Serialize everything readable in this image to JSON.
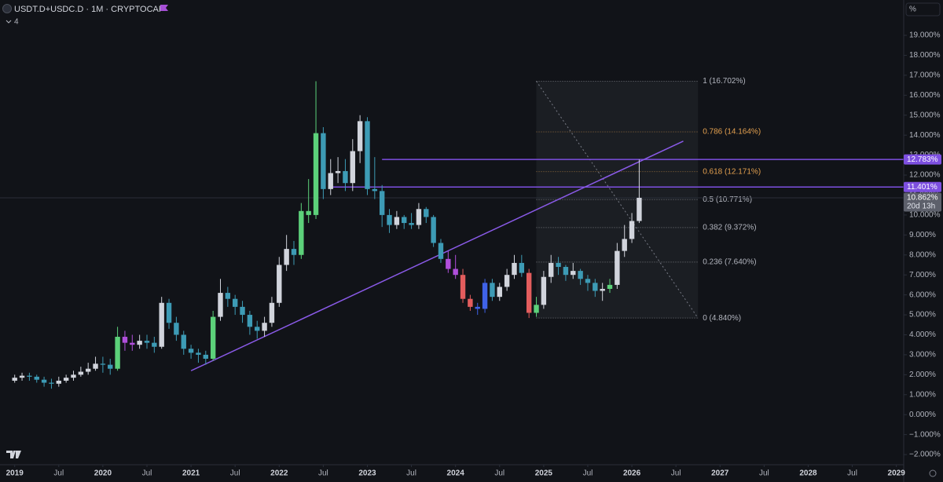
{
  "chart_data": {
    "type": "candlestick",
    "title": "USDT.D+USDC.D · 1M · CRYPTOCAP",
    "indicators": 4,
    "unit_label": "%",
    "x": [
      "2019-01",
      "2019-02",
      "2019-03",
      "2019-04",
      "2019-05",
      "2019-06",
      "2019-07",
      "2019-08",
      "2019-09",
      "2019-10",
      "2019-11",
      "2019-12",
      "2020-01",
      "2020-02",
      "2020-03",
      "2020-04",
      "2020-05",
      "2020-06",
      "2020-07",
      "2020-08",
      "2020-09",
      "2020-10",
      "2020-11",
      "2020-12",
      "2021-01",
      "2021-02",
      "2021-03",
      "2021-04",
      "2021-05",
      "2021-06",
      "2021-07",
      "2021-08",
      "2021-09",
      "2021-10",
      "2021-11",
      "2021-12",
      "2022-01",
      "2022-02",
      "2022-03",
      "2022-04",
      "2022-05",
      "2022-06",
      "2022-07",
      "2022-08",
      "2022-09",
      "2022-10",
      "2022-11",
      "2022-12",
      "2023-01",
      "2023-02",
      "2023-03",
      "2023-04",
      "2023-05",
      "2023-06",
      "2023-07",
      "2023-08",
      "2023-09",
      "2023-10",
      "2023-11",
      "2023-12",
      "2024-01",
      "2024-02",
      "2024-03",
      "2024-04",
      "2024-05",
      "2024-06",
      "2024-07",
      "2024-08",
      "2024-09",
      "2024-10",
      "2024-11",
      "2024-12",
      "2025-01",
      "2025-02",
      "2025-03",
      "2025-04",
      "2025-05",
      "2025-06",
      "2025-07",
      "2025-08",
      "2025-09",
      "2025-10",
      "2025-11",
      "2025-12",
      "2026-01",
      "2026-02"
    ],
    "open": [
      1.7,
      1.85,
      1.95,
      1.9,
      1.75,
      1.6,
      1.55,
      1.7,
      1.85,
      2.0,
      2.15,
      2.3,
      2.55,
      2.5,
      2.3,
      3.9,
      3.6,
      3.5,
      3.7,
      3.6,
      3.4,
      5.6,
      4.6,
      4.0,
      3.3,
      3.1,
      3.0,
      2.8,
      4.9,
      6.1,
      5.8,
      5.4,
      5.0,
      4.4,
      4.2,
      4.6,
      5.6,
      7.5,
      8.3,
      8.0,
      10.2,
      10.0,
      14.1,
      11.3,
      12.1,
      12.2,
      11.6,
      13.2,
      14.7,
      11.3,
      11.2,
      10.0,
      9.5,
      9.9,
      9.6,
      9.5,
      10.3,
      9.9,
      8.6,
      7.8,
      7.3,
      7.0,
      5.8,
      5.4,
      5.3,
      6.6,
      5.9,
      6.4,
      7.0,
      7.6,
      7.1,
      5.1,
      5.5,
      6.9,
      7.6,
      7.4,
      7.0,
      7.2,
      6.8,
      6.6,
      6.2,
      6.3,
      6.5,
      8.2,
      8.8,
      9.7
    ],
    "high": [
      2.0,
      2.1,
      2.1,
      2.0,
      1.9,
      1.8,
      1.9,
      2.0,
      2.2,
      2.4,
      2.6,
      2.9,
      2.9,
      2.8,
      4.4,
      4.2,
      4.0,
      4.0,
      4.0,
      3.9,
      5.9,
      5.8,
      4.9,
      4.2,
      3.5,
      3.3,
      3.2,
      5.2,
      6.8,
      6.4,
      6.0,
      5.7,
      5.2,
      4.7,
      4.9,
      5.9,
      7.9,
      9.0,
      8.7,
      10.6,
      11.8,
      16.702,
      14.4,
      12.8,
      12.9,
      12.8,
      13.8,
      15.0,
      14.9,
      12.9,
      11.5,
      10.3,
      10.2,
      10.0,
      10.1,
      10.6,
      10.4,
      10.0,
      8.8,
      8.2,
      8.0,
      7.3,
      6.0,
      5.6,
      6.8,
      6.8,
      6.6,
      7.3,
      8.0,
      8.0,
      7.3,
      5.9,
      7.2,
      8.0,
      7.9,
      7.5,
      7.6,
      7.3,
      7.0,
      6.8,
      6.6,
      6.8,
      8.6,
      9.5,
      10.1,
      12.783
    ],
    "low": [
      1.6,
      1.7,
      1.7,
      1.6,
      1.4,
      1.3,
      1.4,
      1.6,
      1.7,
      1.9,
      2.0,
      2.2,
      2.1,
      2.0,
      2.2,
      3.2,
      3.2,
      3.3,
      3.3,
      3.1,
      3.3,
      4.3,
      3.7,
      3.0,
      2.8,
      2.6,
      2.5,
      2.7,
      4.7,
      5.4,
      5.0,
      4.6,
      4.0,
      3.8,
      3.9,
      4.4,
      5.4,
      7.2,
      7.5,
      7.8,
      9.6,
      9.8,
      10.8,
      11.0,
      11.6,
      11.2,
      11.2,
      12.6,
      11.0,
      10.8,
      9.4,
      9.1,
      9.3,
      9.3,
      9.3,
      9.3,
      9.6,
      8.4,
      7.6,
      7.1,
      6.8,
      5.6,
      5.2,
      5.0,
      5.1,
      5.7,
      5.7,
      6.2,
      6.8,
      6.9,
      4.84,
      4.9,
      5.3,
      6.6,
      7.0,
      6.7,
      6.8,
      6.5,
      6.2,
      5.9,
      5.7,
      6.1,
      6.3,
      7.9,
      8.6,
      9.6
    ],
    "close": [
      1.85,
      1.95,
      1.9,
      1.75,
      1.6,
      1.55,
      1.7,
      1.85,
      2.0,
      2.15,
      2.3,
      2.55,
      2.5,
      2.3,
      3.9,
      3.6,
      3.5,
      3.7,
      3.6,
      3.4,
      5.6,
      4.6,
      4.0,
      3.3,
      3.1,
      3.0,
      2.8,
      4.9,
      6.1,
      5.8,
      5.4,
      5.0,
      4.4,
      4.2,
      4.6,
      5.6,
      7.5,
      8.3,
      8.0,
      10.2,
      10.0,
      14.1,
      11.3,
      12.1,
      12.2,
      11.6,
      13.2,
      14.7,
      11.3,
      11.2,
      10.0,
      9.5,
      9.9,
      9.6,
      9.5,
      10.3,
      9.9,
      8.6,
      7.8,
      7.3,
      7.0,
      5.8,
      5.4,
      5.3,
      6.6,
      5.9,
      6.4,
      7.0,
      7.6,
      7.1,
      5.1,
      5.5,
      6.9,
      7.6,
      7.4,
      7.0,
      7.2,
      6.8,
      6.6,
      6.2,
      6.3,
      6.5,
      8.2,
      8.8,
      9.7,
      10.862
    ],
    "colors": [
      "#d1d4dc",
      "#d1d4dc",
      "#3d9bb5",
      "#3d9bb5",
      "#3d9bb5",
      "#3d9bb5",
      "#d1d4dc",
      "#d1d4dc",
      "#d1d4dc",
      "#d1d4dc",
      "#d1d4dc",
      "#d1d4dc",
      "#3d9bb5",
      "#3d9bb5",
      "#5cd17a",
      "#b04fdc",
      "#b04fdc",
      "#d1d4dc",
      "#3d9bb5",
      "#3d9bb5",
      "#d1d4dc",
      "#3d9bb5",
      "#3d9bb5",
      "#3d9bb5",
      "#3d9bb5",
      "#3d9bb5",
      "#3d9bb5",
      "#5cd17a",
      "#d1d4dc",
      "#3d9bb5",
      "#3d9bb5",
      "#3d9bb5",
      "#3d9bb5",
      "#3d9bb5",
      "#d1d4dc",
      "#d1d4dc",
      "#d1d4dc",
      "#d1d4dc",
      "#3d9bb5",
      "#5cd17a",
      "#5cd17a",
      "#5cd17a",
      "#3d9bb5",
      "#d1d4dc",
      "#d1d4dc",
      "#3d9bb5",
      "#d1d4dc",
      "#d1d4dc",
      "#3d9bb5",
      "#3d9bb5",
      "#3d9bb5",
      "#3d9bb5",
      "#d1d4dc",
      "#3d9bb5",
      "#3d9bb5",
      "#d1d4dc",
      "#3d9bb5",
      "#3d9bb5",
      "#3d9bb5",
      "#b04fdc",
      "#b04fdc",
      "#e35d5d",
      "#e35d5d",
      "#3f62e8",
      "#3f62e8",
      "#3d9bb5",
      "#d1d4dc",
      "#d1d4dc",
      "#d1d4dc",
      "#3d9bb5",
      "#e35d5d",
      "#5cd17a",
      "#d1d4dc",
      "#d1d4dc",
      "#3d9bb5",
      "#3d9bb5",
      "#d1d4dc",
      "#3d9bb5",
      "#3d9bb5",
      "#3d9bb5",
      "#d1d4dc",
      "#5cd17a",
      "#d1d4dc",
      "#d1d4dc",
      "#d1d4dc",
      "#d1d4dc"
    ],
    "xlim": [
      "2018-11",
      "2029-02"
    ],
    "xticks": [
      {
        "value": "2019-01",
        "label": "2019"
      },
      {
        "value": "2019-07",
        "label": "Jul"
      },
      {
        "value": "2020-01",
        "label": "2020"
      },
      {
        "value": "2020-07",
        "label": "Jul"
      },
      {
        "value": "2021-01",
        "label": "2021"
      },
      {
        "value": "2021-07",
        "label": "Jul"
      },
      {
        "value": "2022-01",
        "label": "2022"
      },
      {
        "value": "2022-07",
        "label": "Jul"
      },
      {
        "value": "2023-01",
        "label": "2023"
      },
      {
        "value": "2023-07",
        "label": "Jul"
      },
      {
        "value": "2024-01",
        "label": "2024"
      },
      {
        "value": "2024-07",
        "label": "Jul"
      },
      {
        "value": "2025-01",
        "label": "2025"
      },
      {
        "value": "2025-07",
        "label": "Jul"
      },
      {
        "value": "2026-01",
        "label": "2026"
      },
      {
        "value": "2026-07",
        "label": "Jul"
      },
      {
        "value": "2027-01",
        "label": "2027"
      },
      {
        "value": "2027-07",
        "label": "Jul"
      },
      {
        "value": "2028-01",
        "label": "2028"
      },
      {
        "value": "2028-07",
        "label": "Jul"
      },
      {
        "value": "2029-01",
        "label": "2029"
      }
    ],
    "ylim": [
      -2.43,
      20.77
    ],
    "yticks": [
      {
        "value": 19,
        "label": "19.000%"
      },
      {
        "value": 18,
        "label": "18.000%"
      },
      {
        "value": 17,
        "label": "17.000%"
      },
      {
        "value": 16,
        "label": "16.000%"
      },
      {
        "value": 15,
        "label": "15.000%"
      },
      {
        "value": 14,
        "label": "14.000%"
      },
      {
        "value": 13,
        "label": "13.000%"
      },
      {
        "value": 12,
        "label": "12.000%"
      },
      {
        "value": 11,
        "label": "11.000%"
      },
      {
        "value": 10,
        "label": "10.000%"
      },
      {
        "value": 9,
        "label": "9.000%"
      },
      {
        "value": 8,
        "label": "8.000%"
      },
      {
        "value": 7,
        "label": "7.000%"
      },
      {
        "value": 6,
        "label": "6.000%"
      },
      {
        "value": 5,
        "label": "5.000%"
      },
      {
        "value": 4,
        "label": "4.000%"
      },
      {
        "value": 3,
        "label": "3.000%"
      },
      {
        "value": 2,
        "label": "2.000%"
      },
      {
        "value": 1,
        "label": "1.000%"
      },
      {
        "value": 0,
        "label": "0.000%"
      },
      {
        "value": -1,
        "label": "−1.000%"
      },
      {
        "value": -2,
        "label": "−2.000%"
      }
    ],
    "trendline": {
      "x": [
        "2021-01",
        "2026-08"
      ],
      "y": [
        2.2,
        13.7
      ],
      "color": "#8a5ae8"
    },
    "levels": [
      {
        "value": 12.783,
        "label": "12.783%",
        "start": "2023-03",
        "color": "#7d4fe0"
      },
      {
        "value": 11.401,
        "label": "11.401%",
        "start": "2022-08",
        "color": "#7d4fe0"
      }
    ],
    "last_price": {
      "value": 10.862,
      "label": "10.862%",
      "countdown": "20d 13h",
      "color": "#5d606b"
    },
    "fib": {
      "start": "2024-12",
      "end": "2026-10",
      "color": "#787b86",
      "levels": [
        {
          "value": 16.702,
          "label": "1 (16.702%)",
          "color": "#b2b5be"
        },
        {
          "value": 14.164,
          "label": "0.786 (14.164%)",
          "color": "#e3a04f"
        },
        {
          "value": 12.171,
          "label": "0.618 (12.171%)",
          "color": "#e3a04f"
        },
        {
          "value": 10.771,
          "label": "0.5 (10.771%)",
          "color": "#b2b5be"
        },
        {
          "value": 9.372,
          "label": "0.382 (9.372%)",
          "color": "#b2b5be"
        },
        {
          "value": 7.64,
          "label": "0.236 (7.640%)",
          "color": "#b2b5be"
        },
        {
          "value": 4.84,
          "label": "0 (4.840%)",
          "color": "#b2b5be"
        }
      ]
    }
  }
}
